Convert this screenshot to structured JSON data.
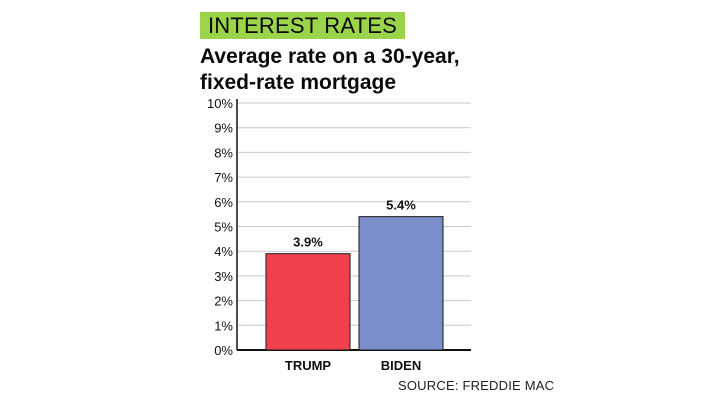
{
  "kicker": "INTEREST RATES",
  "title_line1": "Average rate on a 30-year,",
  "title_line2": "fixed-rate mortgage",
  "source": "SOURCE: FREDDIE MAC",
  "colors": {
    "kicker_bg": "#9bd34a",
    "trump": "#f0404e",
    "biden": "#7b8ec9"
  },
  "chart_data": {
    "type": "bar",
    "title": "Average rate on a 30-year, fixed-rate mortgage",
    "categories": [
      "TRUMP",
      "BIDEN"
    ],
    "values": [
      3.9,
      5.4
    ],
    "value_labels": [
      "3.9%",
      "5.4%"
    ],
    "colors": [
      "#f0404e",
      "#7b8ec9"
    ],
    "ylim": [
      0,
      10
    ],
    "yticks": [
      "0%",
      "1%",
      "2%",
      "3%",
      "4%",
      "5%",
      "6%",
      "7%",
      "8%",
      "9%",
      "10%"
    ],
    "grid": true,
    "legend": "none"
  }
}
